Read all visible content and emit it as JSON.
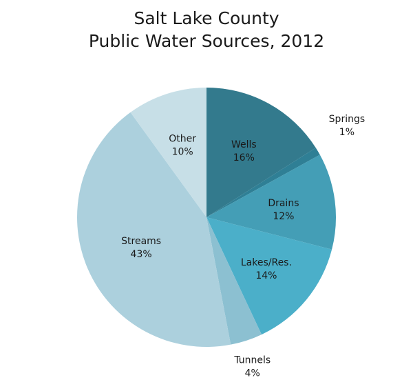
{
  "chart_data": {
    "type": "pie",
    "title": [
      "Salt Lake County",
      "Public Water Sources, 2012"
    ],
    "start_angle_deg": 0,
    "direction": "clockwise",
    "slices": [
      {
        "name": "Wells",
        "value": 16,
        "label": "16%",
        "color": "#337a8d",
        "label_pos": "inside"
      },
      {
        "name": "Springs",
        "value": 1,
        "label": "1%",
        "color": "#2f7f95",
        "label_pos": "outside"
      },
      {
        "name": "Drains",
        "value": 12,
        "label": "12%",
        "color": "#449eb6",
        "label_pos": "inside"
      },
      {
        "name": "Lakes/Res.",
        "value": 14,
        "label": "14%",
        "color": "#4bafc9",
        "label_pos": "inside"
      },
      {
        "name": "Tunnels",
        "value": 4,
        "label": "4%",
        "color": "#8cc0d1",
        "label_pos": "outside"
      },
      {
        "name": "Streams",
        "value": 43,
        "label": "43%",
        "color": "#acd0dd",
        "label_pos": "inside"
      },
      {
        "name": "Other",
        "value": 10,
        "label": "10%",
        "color": "#c7dfe7",
        "label_pos": "inside"
      }
    ]
  }
}
